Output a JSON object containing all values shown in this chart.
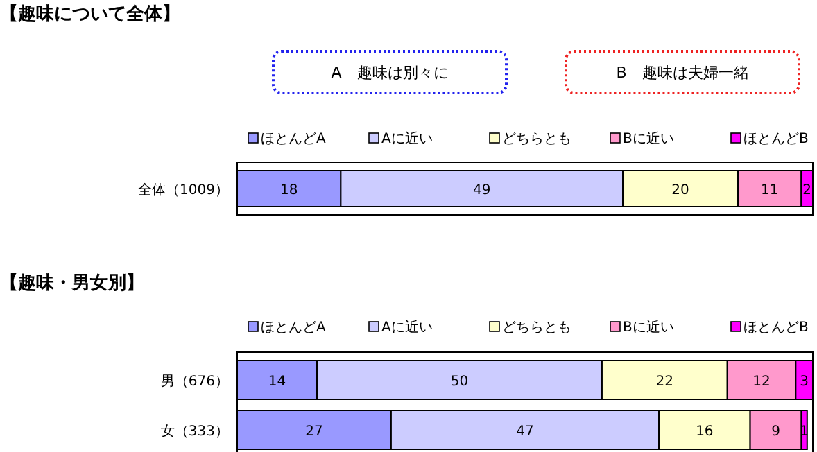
{
  "chart_data": [
    {
      "type": "bar",
      "title": "【趣味について全体】",
      "orientation": "horizontal",
      "stacked": true,
      "data_labels": true,
      "legend": "top",
      "tick_labels": "y",
      "xlim": [
        0,
        100
      ],
      "categories": [
        "全体（1009）"
      ],
      "annotations": [
        "A　趣味は別々に",
        "B　趣味は夫婦一緒"
      ],
      "series": [
        {
          "name": "ほとんどA",
          "color": "#9999ff",
          "values": [
            18
          ]
        },
        {
          "name": "Aに近い",
          "color": "#ccccff",
          "values": [
            49
          ]
        },
        {
          "name": "どちらとも",
          "color": "#ffffcc",
          "values": [
            20
          ]
        },
        {
          "name": "Bに近い",
          "color": "#ff99cc",
          "values": [
            11
          ]
        },
        {
          "name": "ほとんどB",
          "color": "#ff00ff",
          "values": [
            2
          ]
        }
      ]
    },
    {
      "type": "bar",
      "title": "【趣味・男女別】",
      "orientation": "horizontal",
      "stacked": true,
      "data_labels": true,
      "legend": "top",
      "tick_labels": "y",
      "xlim": [
        0,
        101
      ],
      "categories": [
        "男（676）",
        "女（333）"
      ],
      "series": [
        {
          "name": "ほとんどA",
          "color": "#9999ff",
          "values": [
            14,
            27
          ]
        },
        {
          "name": "Aに近い",
          "color": "#ccccff",
          "values": [
            50,
            47
          ]
        },
        {
          "name": "どちらとも",
          "color": "#ffffcc",
          "values": [
            22,
            16
          ]
        },
        {
          "name": "Bに近い",
          "color": "#ff99cc",
          "values": [
            12,
            9
          ]
        },
        {
          "name": "ほとんどB",
          "color": "#ff00ff",
          "values": [
            3,
            1
          ]
        }
      ]
    }
  ]
}
